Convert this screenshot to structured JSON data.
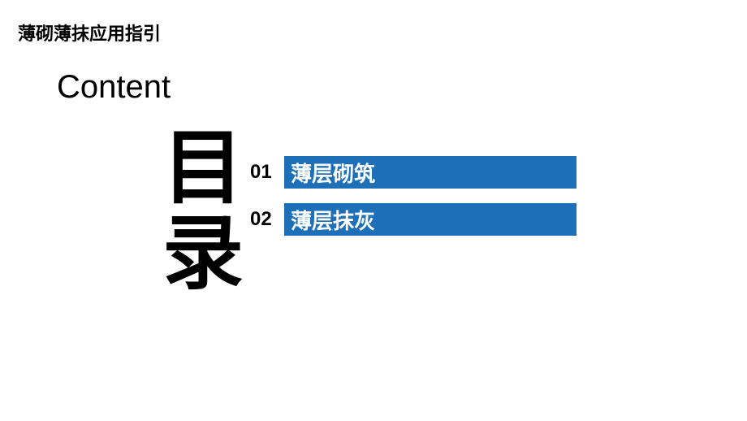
{
  "header": {
    "title": "薄砌薄抹应用指引"
  },
  "content_label": "Content",
  "vertical_heading": "目\n录",
  "toc": {
    "bar_color": "#1d70b8",
    "bar_text_color": "#ffffff",
    "items": [
      {
        "number": "01",
        "label": "薄层砌筑"
      },
      {
        "number": "02",
        "label": "薄层抹灰"
      }
    ]
  }
}
